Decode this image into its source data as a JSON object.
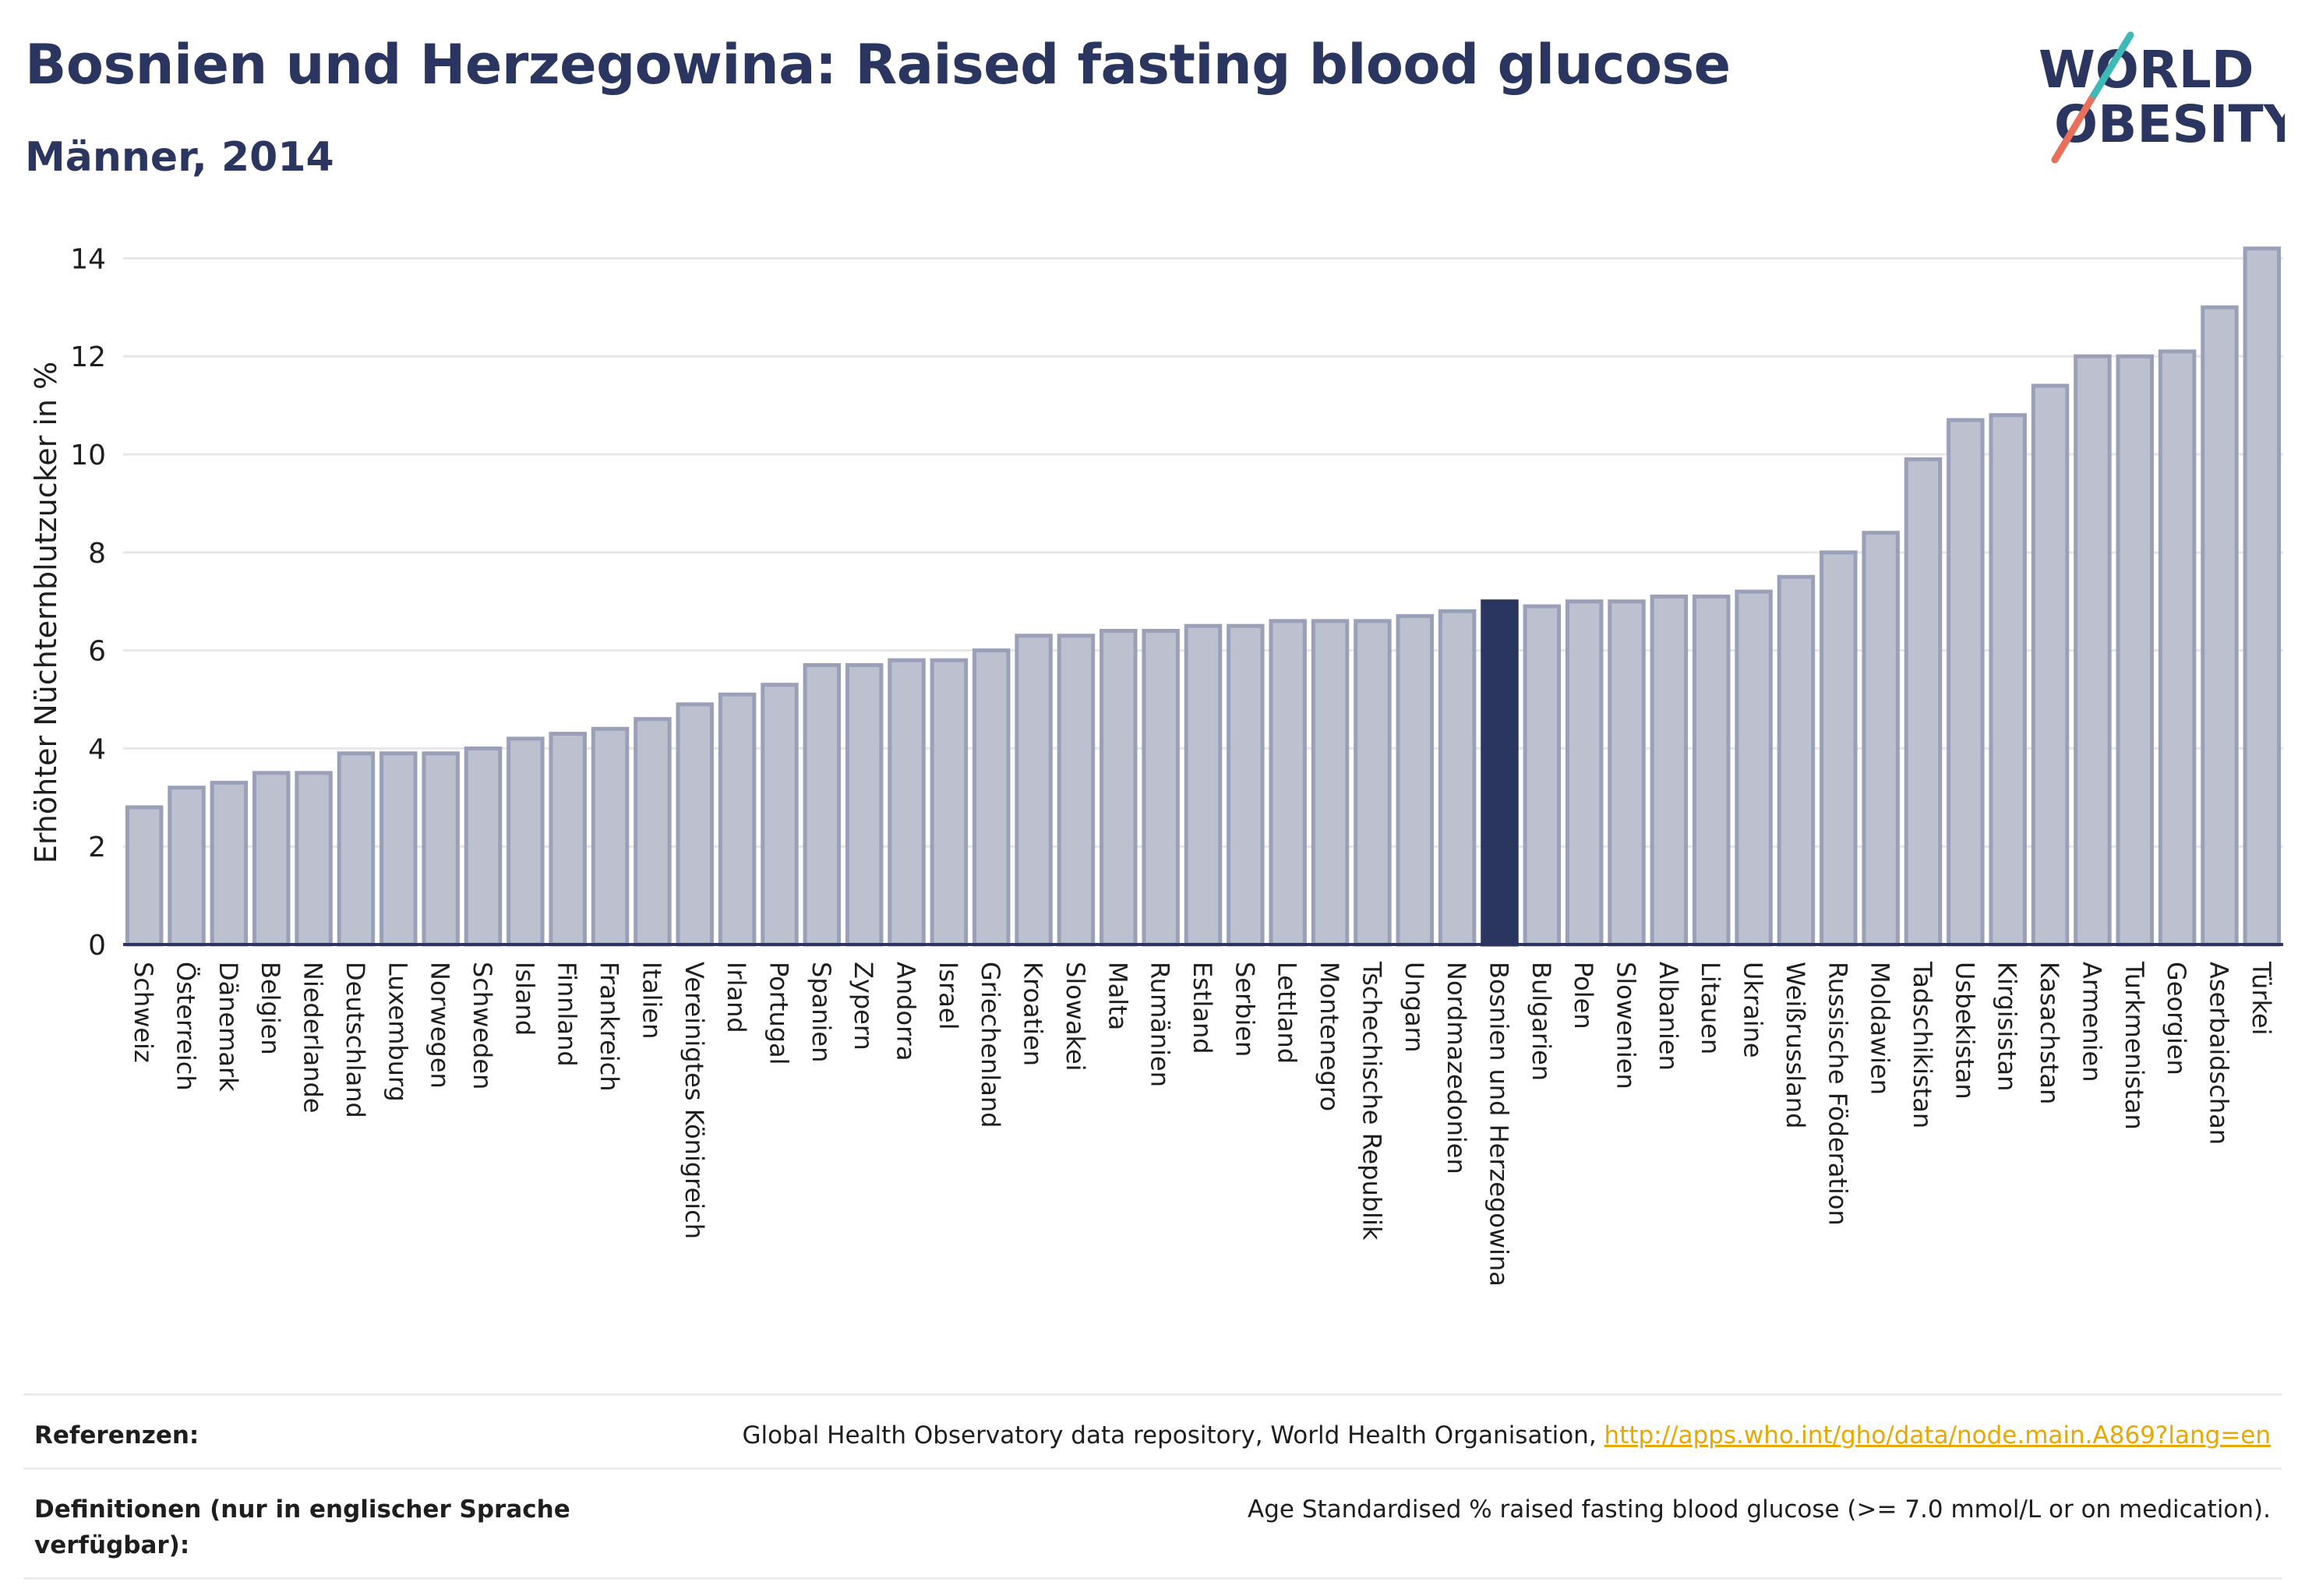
{
  "header": {
    "title": "Bosnien und Herzegowina: Raised fasting blood glucose",
    "subtitle": "Männer, 2014"
  },
  "logo": {
    "line1": "WORLD",
    "line2": "OBESITY"
  },
  "chart_data": {
    "type": "bar",
    "ylabel": "Erhöhter Nüchternblutzucker in %",
    "ylim": [
      0,
      14.5
    ],
    "yticks": [
      0,
      2,
      4,
      6,
      8,
      10,
      12,
      14
    ],
    "grid": true,
    "highlight": "Bosnien und Herzegowina",
    "colors": {
      "bar": "#bcc0cf",
      "bar_edge": "#9aa0b7",
      "highlight": "#2b3660",
      "grid": "#e6e6e6",
      "axis": "#2b3660"
    },
    "categories": [
      "Schweiz",
      "Österreich",
      "Dänemark",
      "Belgien",
      "Niederlande",
      "Deutschland",
      "Luxemburg",
      "Norwegen",
      "Schweden",
      "Island",
      "Finnland",
      "Frankreich",
      "Italien",
      "Vereinigtes Königreich",
      "Irland",
      "Portugal",
      "Spanien",
      "Zypern",
      "Andorra",
      "Israel",
      "Griechenland",
      "Kroatien",
      "Slowakei",
      "Malta",
      "Rumänien",
      "Estland",
      "Serbien",
      "Lettland",
      "Montenegro",
      "Tschechische Republik",
      "Ungarn",
      "Nordmazedonien",
      "Bosnien und Herzegowina",
      "Bulgarien",
      "Polen",
      "Slowenien",
      "Albanien",
      "Litauen",
      "Ukraine",
      "Weißrussland",
      "Russische Föderation",
      "Moldawien",
      "Tadschikistan",
      "Usbekistan",
      "Kirgisistan",
      "Kasachstan",
      "Armenien",
      "Turkmenistan",
      "Georgien",
      "Aserbaidschan",
      "Türkei"
    ],
    "values": [
      2.8,
      3.2,
      3.3,
      3.5,
      3.5,
      3.9,
      3.9,
      3.9,
      4.0,
      4.2,
      4.3,
      4.4,
      4.6,
      4.9,
      5.1,
      5.3,
      5.7,
      5.7,
      5.8,
      5.8,
      6.0,
      6.3,
      6.3,
      6.4,
      6.4,
      6.5,
      6.5,
      6.6,
      6.6,
      6.6,
      6.7,
      6.8,
      7.0,
      6.9,
      7.0,
      7.0,
      7.1,
      7.1,
      7.2,
      7.5,
      8.0,
      8.4,
      9.9,
      10.7,
      10.8,
      11.4,
      12.0,
      12.0,
      12.1,
      13.0,
      14.2
    ]
  },
  "footer": {
    "references_label": "Referenzen:",
    "references_text": "Global Health Observatory data repository, World Health Organisation, ",
    "references_link": "http://apps.who.int/gho/data/node.main.A869?lang=en",
    "definitions_label": "Definitionen (nur in englischer Sprache verfügbar):",
    "definitions_text": "Age Standardised % raised fasting blood glucose (>= 7.0 mmol/L or on medication)."
  }
}
